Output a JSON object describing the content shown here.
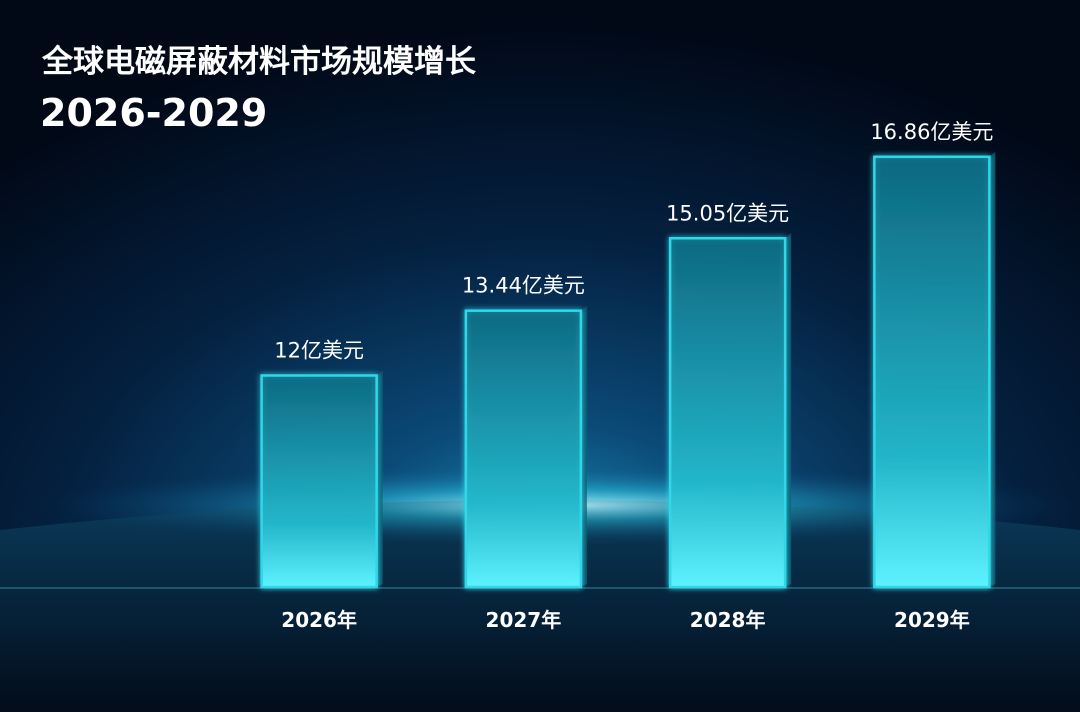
{
  "chart_data": {
    "type": "bar",
    "title": "全球电磁屏蔽材料市场规模增长",
    "subtitle": "2026-2029",
    "categories": [
      "2026年",
      "2027年",
      "2028年",
      "2029年"
    ],
    "values": [
      12,
      13.44,
      15.05,
      16.86
    ],
    "value_labels": [
      "12亿美元",
      "13.44亿美元",
      "15.05亿美元",
      "16.86亿美元"
    ],
    "color": "#2fd8e8",
    "ylim": [
      7.3,
      17.5
    ]
  }
}
